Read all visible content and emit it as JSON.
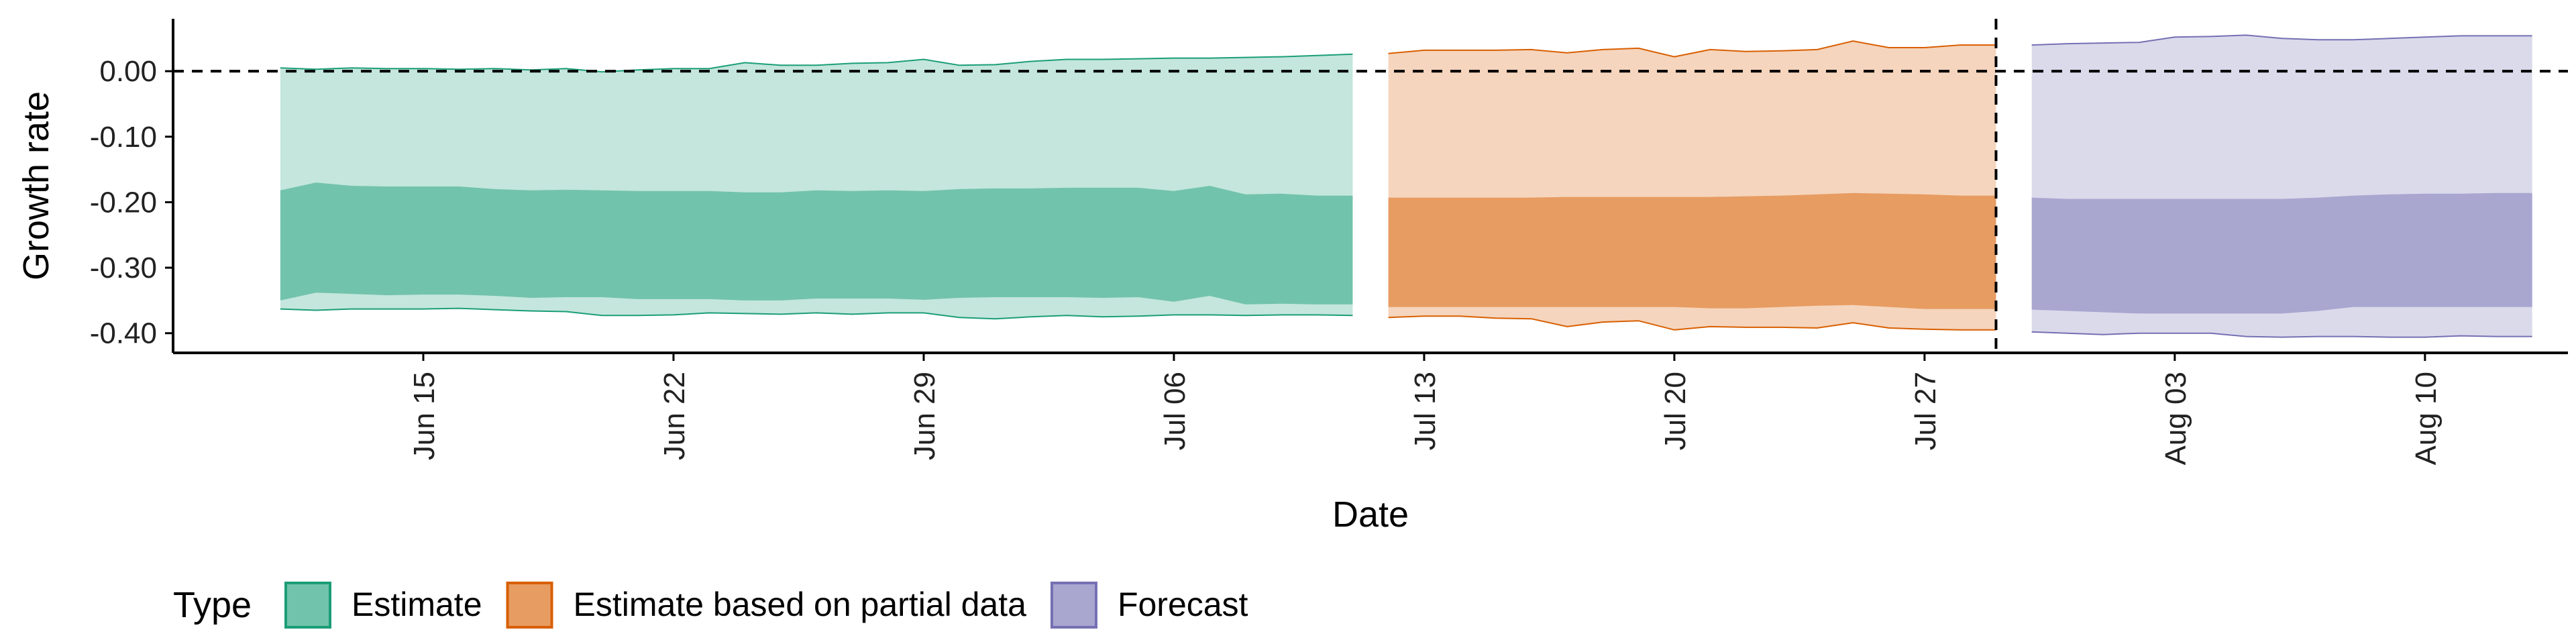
{
  "chart_data": {
    "type": "area",
    "xlabel": "Date",
    "ylabel": "Growth rate",
    "ylim": [
      -0.43,
      0.08
    ],
    "xlim": [
      "2020-06-08",
      "2020-08-14"
    ],
    "yticks": [
      0.0,
      -0.1,
      -0.2,
      -0.3,
      -0.4
    ],
    "ytick_labels": [
      "0.00",
      "-0.10",
      "-0.20",
      "-0.30",
      "-0.40"
    ],
    "xticks": [
      "2020-06-15",
      "2020-06-22",
      "2020-06-29",
      "2020-07-06",
      "2020-07-13",
      "2020-07-20",
      "2020-07-27",
      "2020-08-03",
      "2020-08-10"
    ],
    "xtick_labels": [
      "Jun 15",
      "Jun 22",
      "Jun 29",
      "Jul 06",
      "Jul 13",
      "Jul 20",
      "Jul 27",
      "Aug 03",
      "Aug 10"
    ],
    "hline": 0.0,
    "vline": "2020-07-29",
    "grid": false,
    "legend": {
      "title": "Type",
      "position": "bottom-left"
    },
    "series": [
      {
        "name": "Estimate",
        "color": "#1b9e77",
        "x": [
          "2020-06-11",
          "2020-06-12",
          "2020-06-13",
          "2020-06-14",
          "2020-06-15",
          "2020-06-16",
          "2020-06-17",
          "2020-06-18",
          "2020-06-19",
          "2020-06-20",
          "2020-06-21",
          "2020-06-22",
          "2020-06-23",
          "2020-06-24",
          "2020-06-25",
          "2020-06-26",
          "2020-06-27",
          "2020-06-28",
          "2020-06-29",
          "2020-06-30",
          "2020-07-01",
          "2020-07-02",
          "2020-07-03",
          "2020-07-04",
          "2020-07-05",
          "2020-07-06",
          "2020-07-07",
          "2020-07-08",
          "2020-07-09",
          "2020-07-10",
          "2020-07-11"
        ],
        "upper90": [
          0.005,
          0.003,
          0.005,
          0.004,
          0.004,
          0.003,
          0.004,
          0.002,
          0.004,
          -0.001,
          0.002,
          0.004,
          0.004,
          0.013,
          0.009,
          0.009,
          0.012,
          0.013,
          0.018,
          0.009,
          0.01,
          0.015,
          0.018,
          0.018,
          0.019,
          0.02,
          0.02,
          0.021,
          0.022,
          0.024,
          0.026
        ],
        "upper50": [
          -0.182,
          -0.17,
          -0.175,
          -0.176,
          -0.176,
          -0.176,
          -0.18,
          -0.182,
          -0.181,
          -0.182,
          -0.183,
          -0.183,
          -0.183,
          -0.185,
          -0.185,
          -0.182,
          -0.183,
          -0.182,
          -0.183,
          -0.18,
          -0.179,
          -0.179,
          -0.178,
          -0.178,
          -0.178,
          -0.183,
          -0.175,
          -0.188,
          -0.187,
          -0.19,
          -0.19
        ],
        "lower50": [
          -0.35,
          -0.338,
          -0.34,
          -0.342,
          -0.341,
          -0.341,
          -0.343,
          -0.346,
          -0.345,
          -0.345,
          -0.348,
          -0.348,
          -0.348,
          -0.35,
          -0.35,
          -0.347,
          -0.347,
          -0.347,
          -0.349,
          -0.346,
          -0.345,
          -0.345,
          -0.345,
          -0.346,
          -0.345,
          -0.352,
          -0.343,
          -0.356,
          -0.355,
          -0.356,
          -0.356
        ],
        "lower90": [
          -0.363,
          -0.365,
          -0.363,
          -0.363,
          -0.363,
          -0.362,
          -0.364,
          -0.366,
          -0.367,
          -0.373,
          -0.373,
          -0.372,
          -0.369,
          -0.37,
          -0.371,
          -0.369,
          -0.371,
          -0.369,
          -0.369,
          -0.376,
          -0.378,
          -0.375,
          -0.373,
          -0.375,
          -0.374,
          -0.372,
          -0.372,
          -0.373,
          -0.372,
          -0.372,
          -0.373
        ]
      },
      {
        "name": "Estimate based on partial data",
        "color": "#d95f02",
        "x": [
          "2020-07-12",
          "2020-07-13",
          "2020-07-14",
          "2020-07-15",
          "2020-07-16",
          "2020-07-17",
          "2020-07-18",
          "2020-07-19",
          "2020-07-20",
          "2020-07-21",
          "2020-07-22",
          "2020-07-23",
          "2020-07-24",
          "2020-07-25",
          "2020-07-26",
          "2020-07-27",
          "2020-07-28",
          "2020-07-29"
        ],
        "upper90": [
          0.027,
          0.032,
          0.032,
          0.032,
          0.033,
          0.028,
          0.033,
          0.035,
          0.022,
          0.033,
          0.03,
          0.031,
          0.033,
          0.046,
          0.036,
          0.036,
          0.04,
          0.04
        ],
        "upper50": [
          -0.193,
          -0.193,
          -0.193,
          -0.193,
          -0.193,
          -0.192,
          -0.192,
          -0.192,
          -0.192,
          -0.192,
          -0.191,
          -0.19,
          -0.188,
          -0.186,
          -0.187,
          -0.188,
          -0.19,
          -0.19
        ],
        "lower50": [
          -0.36,
          -0.36,
          -0.36,
          -0.36,
          -0.36,
          -0.36,
          -0.36,
          -0.36,
          -0.36,
          -0.362,
          -0.362,
          -0.36,
          -0.358,
          -0.357,
          -0.36,
          -0.363,
          -0.363,
          -0.363
        ],
        "lower90": [
          -0.376,
          -0.374,
          -0.374,
          -0.377,
          -0.378,
          -0.39,
          -0.383,
          -0.381,
          -0.395,
          -0.39,
          -0.391,
          -0.391,
          -0.392,
          -0.384,
          -0.392,
          -0.394,
          -0.395,
          -0.395
        ]
      },
      {
        "name": "Forecast",
        "color": "#7570b3",
        "x": [
          "2020-07-30",
          "2020-07-31",
          "2020-08-01",
          "2020-08-02",
          "2020-08-03",
          "2020-08-04",
          "2020-08-05",
          "2020-08-06",
          "2020-08-07",
          "2020-08-08",
          "2020-08-09",
          "2020-08-10",
          "2020-08-11",
          "2020-08-12",
          "2020-08-13"
        ],
        "upper90": [
          0.04,
          0.042,
          0.043,
          0.044,
          0.052,
          0.053,
          0.055,
          0.05,
          0.048,
          0.048,
          0.05,
          0.052,
          0.054,
          0.054,
          0.054
        ],
        "upper50": [
          -0.193,
          -0.195,
          -0.195,
          -0.195,
          -0.195,
          -0.195,
          -0.195,
          -0.195,
          -0.193,
          -0.19,
          -0.188,
          -0.187,
          -0.187,
          -0.186,
          -0.186
        ],
        "lower50": [
          -0.364,
          -0.366,
          -0.368,
          -0.37,
          -0.37,
          -0.37,
          -0.37,
          -0.37,
          -0.366,
          -0.36,
          -0.36,
          -0.36,
          -0.36,
          -0.36,
          -0.36
        ],
        "lower90": [
          -0.398,
          -0.4,
          -0.402,
          -0.4,
          -0.4,
          -0.4,
          -0.405,
          -0.406,
          -0.405,
          -0.405,
          -0.406,
          -0.406,
          -0.404,
          -0.405,
          -0.405
        ]
      }
    ]
  }
}
